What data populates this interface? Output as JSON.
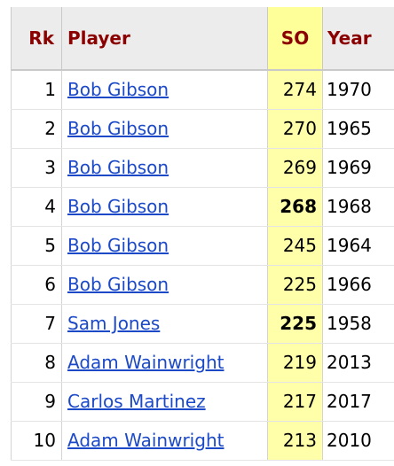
{
  "table": {
    "headers": {
      "rank": "Rk",
      "player": "Player",
      "so": "SO",
      "year": "Year"
    },
    "rows": [
      {
        "rank": "1",
        "player": "Bob Gibson",
        "so": "274",
        "year": "1970",
        "so_bold": false
      },
      {
        "rank": "2",
        "player": "Bob Gibson",
        "so": "270",
        "year": "1965",
        "so_bold": false
      },
      {
        "rank": "3",
        "player": "Bob Gibson",
        "so": "269",
        "year": "1969",
        "so_bold": false
      },
      {
        "rank": "4",
        "player": "Bob Gibson",
        "so": "268",
        "year": "1968",
        "so_bold": true
      },
      {
        "rank": "5",
        "player": "Bob Gibson",
        "so": "245",
        "year": "1964",
        "so_bold": false
      },
      {
        "rank": "6",
        "player": "Bob Gibson",
        "so": "225",
        "year": "1966",
        "so_bold": false
      },
      {
        "rank": "7",
        "player": "Sam Jones",
        "so": "225",
        "year": "1958",
        "so_bold": true
      },
      {
        "rank": "8",
        "player": "Adam Wainwright",
        "so": "219",
        "year": "2013",
        "so_bold": false
      },
      {
        "rank": "9",
        "player": "Carlos Martinez",
        "so": "217",
        "year": "2017",
        "so_bold": false
      },
      {
        "rank": "10",
        "player": "Adam Wainwright",
        "so": "213",
        "year": "2010",
        "so_bold": false
      }
    ]
  },
  "colors": {
    "header_text": "#8b0000",
    "header_bg": "#ececec",
    "so_column_bg": "#ffffaa",
    "link": "#1b49c8"
  }
}
